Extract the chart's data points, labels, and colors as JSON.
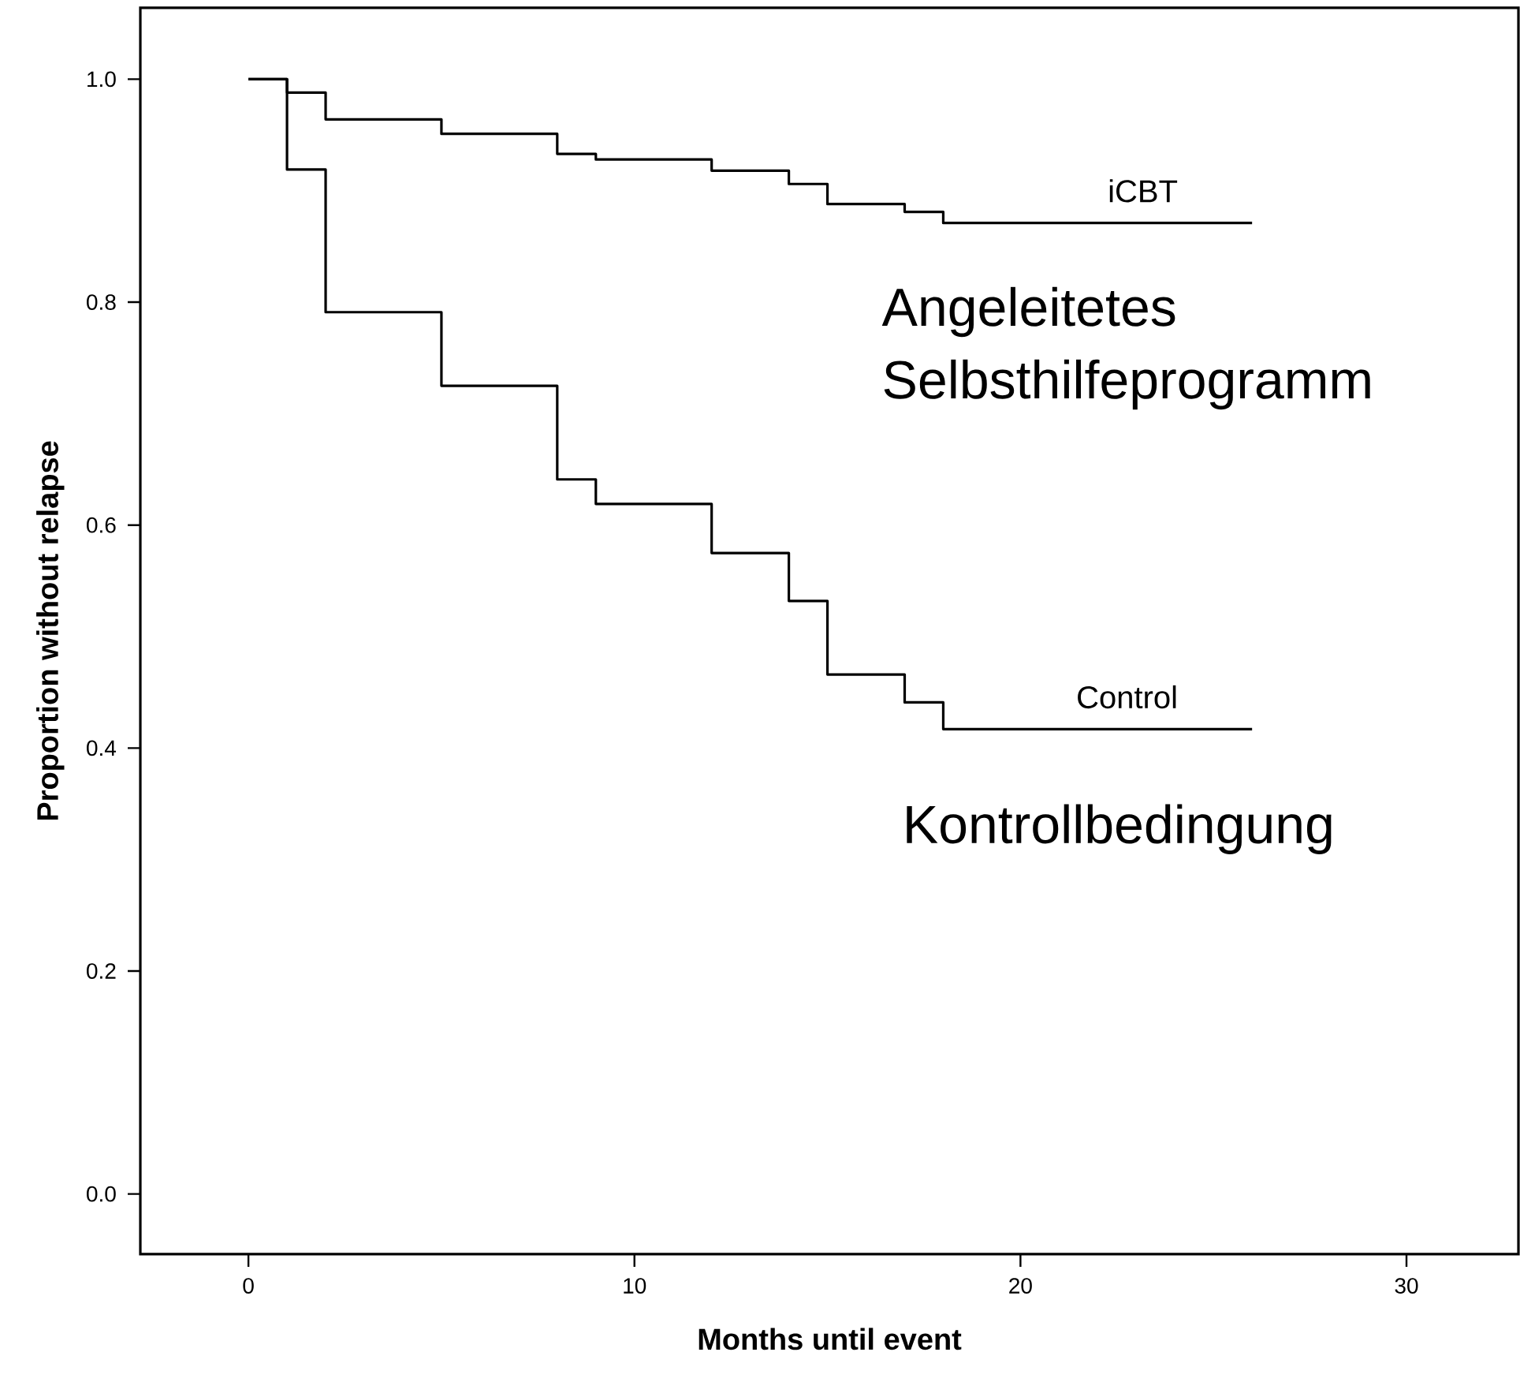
{
  "chart_data": {
    "type": "step",
    "xlabel": "Months until event",
    "ylabel": "Proportion without relapse",
    "x": [
      0,
      1,
      2,
      5,
      8,
      9,
      12,
      14,
      15,
      17,
      18,
      26
    ],
    "series": [
      {
        "name": "iCBT",
        "color": "#000000",
        "values": [
          1.0,
          0.988,
          0.964,
          0.951,
          0.933,
          0.928,
          0.918,
          0.906,
          0.888,
          0.881,
          0.871,
          0.871
        ]
      },
      {
        "name": "Control",
        "color": "#000000",
        "values": [
          1.0,
          0.919,
          0.791,
          0.725,
          0.641,
          0.619,
          0.575,
          0.532,
          0.466,
          0.441,
          0.417,
          0.417
        ]
      }
    ],
    "annotations": [
      "Angeleitetes Selbsthilfeprogramm",
      "Kontrollbedingung"
    ],
    "xlim": [
      -2.8,
      32.9
    ],
    "ylim": [
      -0.054,
      1.064
    ],
    "xticks": [
      0,
      10,
      20,
      30
    ],
    "yticks": [
      {
        "value": 0,
        "label": "0.0"
      },
      {
        "value": 0.2,
        "label": "0.2"
      },
      {
        "value": 0.4,
        "label": "0.4"
      },
      {
        "value": 0.6,
        "label": "0.6"
      },
      {
        "value": 0.8,
        "label": "0.8"
      },
      {
        "value": 1.0,
        "label": "1.0"
      }
    ],
    "grid": false
  }
}
